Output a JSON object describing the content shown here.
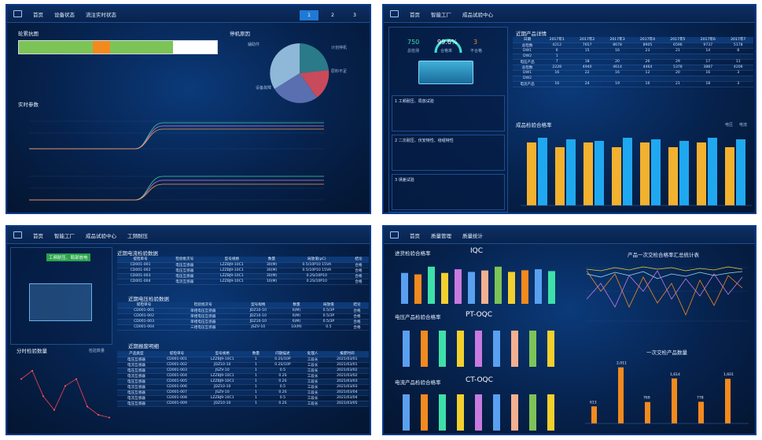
{
  "s1": {
    "nav": [
      "首页",
      "设备状态",
      "流注实时状态"
    ],
    "tabs": [
      "1",
      "2",
      "3"
    ],
    "t_gantt": "轮累抗图",
    "t_pie": "停机原因",
    "t_rt": "实时参数",
    "pie_labels": [
      "辅助件",
      "计划停机",
      "原料不足",
      "设备故障"
    ]
  },
  "s2": {
    "nav": [
      "首页",
      "智能工厂",
      "成品试验中心"
    ],
    "kpi": [
      {
        "v": "750",
        "l": "总检测"
      },
      {
        "v": "99.6%",
        "l": "合格率"
      },
      {
        "v": "3",
        "l": "不合格"
      }
    ],
    "steps": [
      "1 工频耐压、局放试验",
      "2 二次耐压、伏安特性、绕组特性",
      "3 误差试验"
    ],
    "t_tbl": "近期产品详情",
    "t_chart": "成品检验合格率",
    "legend": [
      "电压",
      "电流"
    ],
    "tbl": [
      [
        "日期",
        "2017年1",
        "2017年2",
        "2017年3",
        "2017年4",
        "2017年5",
        "2017年6",
        "2017年7"
      ],
      [
        "总检数",
        "4212",
        "7657",
        "8678",
        "8905",
        "6596",
        "9737",
        "5178"
      ],
      [
        "DW1",
        "6",
        "15",
        "16",
        "23",
        "21",
        "14",
        "8"
      ],
      [
        "DW2",
        "1",
        "",
        "",
        "",
        "",
        "",
        ""
      ],
      [
        "电压产品",
        "7",
        "18",
        "20",
        "26",
        "29",
        "17",
        "11"
      ],
      [
        "总检数",
        "2228",
        "4940",
        "4614",
        "4464",
        "5378",
        "3887",
        "4206"
      ],
      [
        "DW1",
        "16",
        "22",
        "16",
        "12",
        "20",
        "16",
        "3"
      ],
      [
        "DW2",
        "",
        "",
        "",
        "",
        "",
        "",
        ""
      ],
      [
        "电流产品",
        "16",
        "24",
        "19",
        "16",
        "21",
        "18",
        "3"
      ]
    ]
  },
  "s3": {
    "nav": [
      "首页",
      "智能工厂",
      "成品试验中心",
      "工频耐压"
    ],
    "badge": "工频耐压、局部放电",
    "t_a": "近期电流检验数据",
    "t_b": "近期电压检验数据",
    "t_c": "近期报废明细",
    "t_line": "分时检验数量",
    "legend": "检验数量",
    "ta": [
      [
        "提检单号",
        "检验批次号",
        "型号规格",
        "数量",
        "局放值(pC)",
        "结论"
      ],
      [
        "CD001-001",
        "电压互感器",
        "LZZBJ9-10C1",
        "30(M)",
        "0.5/10P10 15VA",
        "合格"
      ],
      [
        "CD001-002",
        "电压互感器",
        "LZZBJ9-10C1",
        "30(M)",
        "0.5/10P10 15VA",
        "合格"
      ],
      [
        "CD001-003",
        "电压互感器",
        "LZZBJ9-10C1",
        "30(M)",
        "0.2S/10P10",
        "合格"
      ],
      [
        "CD001-004",
        "电流互感器",
        "LZZBJ9-10C1",
        "10(M)",
        "0.2S/10P10",
        "合格"
      ]
    ],
    "tb": [
      [
        "提检单号",
        "检验批次号",
        "型号规格",
        "数量",
        "局放值",
        "结论"
      ],
      [
        "CD001-001",
        "单相电压互感器",
        "JDZ10-10",
        "6(M)",
        "0.5/3P",
        "合格"
      ],
      [
        "CD001-002",
        "单相电压互感器",
        "JDZ10-10",
        "6(M)",
        "0.5/3P",
        "合格"
      ],
      [
        "CD001-003",
        "单相电压互感器",
        "JDZ10-10",
        "6(M)",
        "0.5/3P",
        "合格"
      ],
      [
        "CD001-004",
        "三相电压互感器",
        "JSZV-10",
        "10(M)",
        "0.5",
        "合格"
      ]
    ],
    "tc": [
      [
        "产品类型",
        "提检单号",
        "型号规格",
        "数量",
        "问题描述",
        "处理人",
        "报废时间"
      ],
      [
        "电压互感器",
        "CD001-001",
        "LZZBJ9-10C1",
        "1",
        "0.2S/10P",
        "工段长",
        "2021/03/01"
      ],
      [
        "电流互感器",
        "CD001-002",
        "JDZ10-10",
        "1",
        "0.2S/10P",
        "工段长",
        "2021/03/01"
      ],
      [
        "电压互感器",
        "CD001-003",
        "JSZV-10",
        "1",
        "0.5",
        "工段长",
        "2021/03/02"
      ],
      [
        "电流互感器",
        "CD001-004",
        "LZZBJ9-10C1",
        "1",
        "0.2S",
        "工段长",
        "2021/03/02"
      ],
      [
        "电压互感器",
        "CD001-005",
        "LZZBJ9-10C1",
        "1",
        "0.2S",
        "工段长",
        "2021/03/03"
      ],
      [
        "电流互感器",
        "CD001-006",
        "JDZ10-10",
        "1",
        "0.5",
        "工段长",
        "2021/03/03"
      ],
      [
        "电压互感器",
        "CD001-007",
        "JSZV-10",
        "1",
        "0.2S",
        "工段长",
        "2021/03/04"
      ],
      [
        "电流互感器",
        "CD001-008",
        "LZZBJ9-10C1",
        "1",
        "0.5",
        "工段长",
        "2021/03/04"
      ],
      [
        "电压互感器",
        "CD001-009",
        "JDZ10-10",
        "1",
        "0.2S",
        "工段长",
        "2021/03/05"
      ]
    ],
    "line": [
      60,
      72,
      35,
      15,
      50,
      60,
      20,
      8,
      4
    ]
  },
  "s4": {
    "nav": [
      "首页",
      "质量管理",
      "质量统计"
    ],
    "t_iqc": "进货检验合格率",
    "c_iqc": "IQC",
    "t_pt": "电压产品检验合格率",
    "c_pt": "PT-OQC",
    "t_ct": "电流产品检验合格率",
    "c_ct": "CT-OQC",
    "t_line": "产品一次交检合格率汇总统计表",
    "t_bar": "一次交检产品数量",
    "iqc": [
      90.2,
      88.8,
      96.3,
      90.2,
      93.8,
      91.2,
      92.6,
      96.3,
      91.2,
      92.8,
      93.8,
      92.0
    ],
    "bars": [
      613,
      2011,
      769,
      1614,
      778,
      1601
    ],
    "bar_labels": [
      "613",
      "2,011",
      "769",
      "1,614",
      "778",
      "1,601"
    ]
  },
  "colors": {
    "cyan": "#1fa8f0",
    "gold": "#f2b12e",
    "green": "#7dc457",
    "orange": "#f28a1e"
  }
}
